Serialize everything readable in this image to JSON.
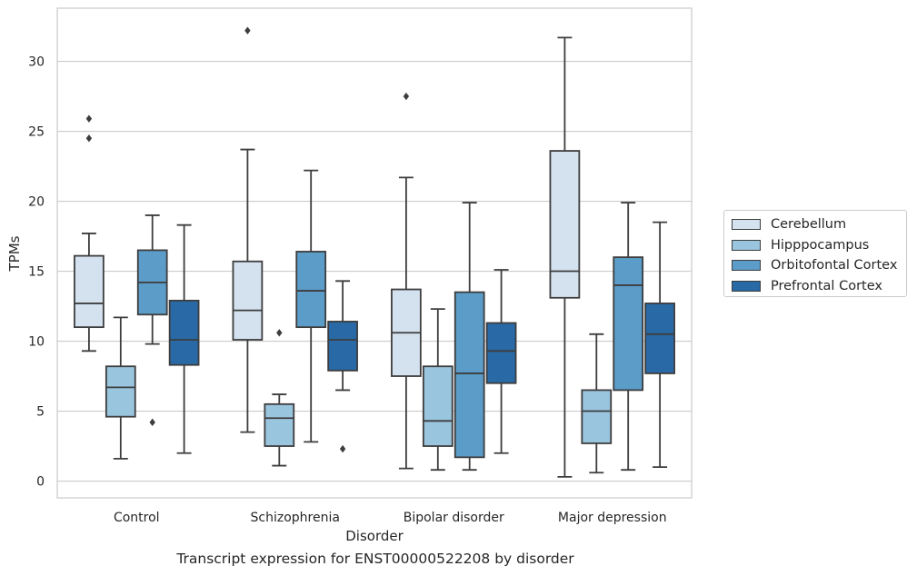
{
  "caption": "Transcript expression for ENST00000522208 by disorder",
  "chart_data": {
    "type": "box",
    "xlabel": "Disorder",
    "ylabel": "TPMs",
    "ylim": [
      -1.2,
      33.8
    ],
    "yticks": [
      0,
      5,
      10,
      15,
      20,
      25,
      30
    ],
    "grid": "horizontal",
    "legend_position": "right",
    "categories": [
      "Control",
      "Schizophrenia",
      "Bipolar disorder",
      "Major depression"
    ],
    "series": [
      {
        "name": "Cerebellum",
        "color": "#d4e2f0",
        "boxes": [
          {
            "whislo": 9.3,
            "q1": 11.0,
            "med": 12.7,
            "q3": 16.1,
            "whishi": 17.7,
            "fliers": [
              24.5,
              25.9
            ]
          },
          {
            "whislo": 3.5,
            "q1": 10.1,
            "med": 12.2,
            "q3": 15.7,
            "whishi": 23.7,
            "fliers": [
              32.2
            ]
          },
          {
            "whislo": 0.9,
            "q1": 7.5,
            "med": 10.6,
            "q3": 13.7,
            "whishi": 21.7,
            "fliers": [
              27.5
            ]
          },
          {
            "whislo": 0.3,
            "q1": 13.1,
            "med": 15.0,
            "q3": 23.6,
            "whishi": 31.7,
            "fliers": []
          }
        ]
      },
      {
        "name": "Hipppocampus",
        "color": "#9ac5df",
        "boxes": [
          {
            "whislo": 1.6,
            "q1": 4.6,
            "med": 6.7,
            "q3": 8.2,
            "whishi": 11.7,
            "fliers": []
          },
          {
            "whislo": 1.1,
            "q1": 2.5,
            "med": 4.5,
            "q3": 5.5,
            "whishi": 6.2,
            "fliers": [
              10.6
            ]
          },
          {
            "whislo": 0.8,
            "q1": 2.5,
            "med": 4.3,
            "q3": 8.2,
            "whishi": 12.3,
            "fliers": []
          },
          {
            "whislo": 0.6,
            "q1": 2.7,
            "med": 5.0,
            "q3": 6.5,
            "whishi": 10.5,
            "fliers": []
          }
        ]
      },
      {
        "name": "Orbitofontal Cortex",
        "color": "#5b9cc9",
        "boxes": [
          {
            "whislo": 9.8,
            "q1": 11.9,
            "med": 14.2,
            "q3": 16.5,
            "whishi": 19.0,
            "fliers": [
              4.2
            ]
          },
          {
            "whislo": 2.8,
            "q1": 11.0,
            "med": 13.6,
            "q3": 16.4,
            "whishi": 22.2,
            "fliers": []
          },
          {
            "whislo": 0.8,
            "q1": 1.7,
            "med": 7.7,
            "q3": 13.5,
            "whishi": 19.9,
            "fliers": []
          },
          {
            "whislo": 0.8,
            "q1": 6.5,
            "med": 14.0,
            "q3": 16.0,
            "whishi": 19.9,
            "fliers": []
          }
        ]
      },
      {
        "name": "Prefrontal Cortex",
        "color": "#2869a6",
        "boxes": [
          {
            "whislo": 2.0,
            "q1": 8.3,
            "med": 10.1,
            "q3": 12.9,
            "whishi": 18.3,
            "fliers": []
          },
          {
            "whislo": 6.5,
            "q1": 7.9,
            "med": 10.1,
            "q3": 11.4,
            "whishi": 14.3,
            "fliers": [
              2.3
            ]
          },
          {
            "whislo": 2.0,
            "q1": 7.0,
            "med": 9.3,
            "q3": 11.3,
            "whishi": 15.1,
            "fliers": []
          },
          {
            "whislo": 1.0,
            "q1": 7.7,
            "med": 10.5,
            "q3": 12.7,
            "whishi": 18.5,
            "fliers": []
          }
        ]
      }
    ]
  }
}
